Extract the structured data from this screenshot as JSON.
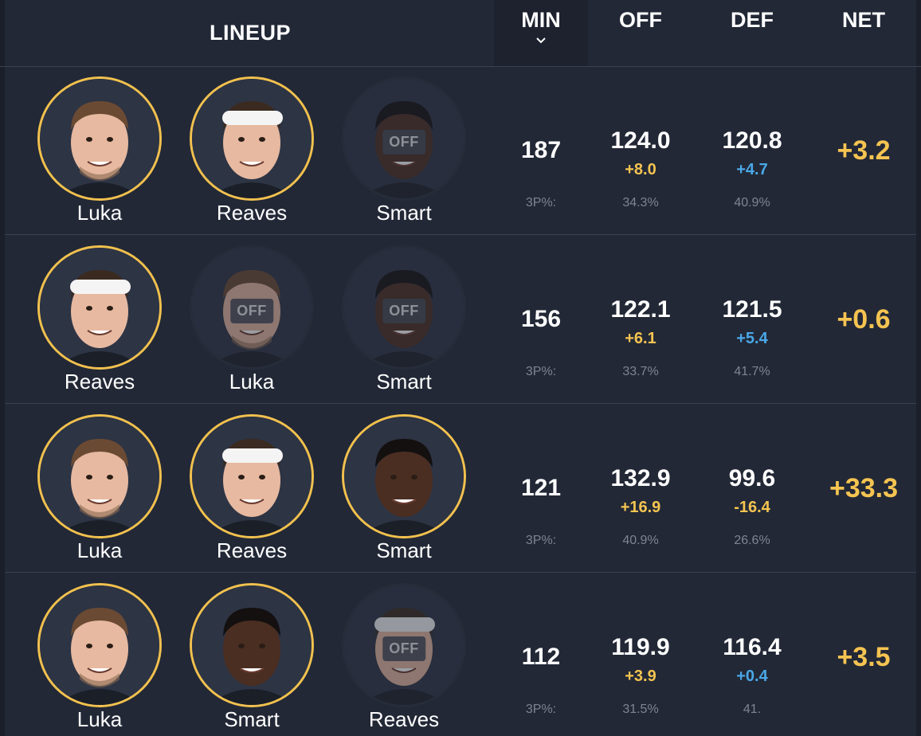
{
  "header": {
    "lineup": "LINEUP",
    "min": "MIN",
    "off": "OFF",
    "def": "DEF",
    "net": "NET",
    "sort_icon": "chevron-down-icon"
  },
  "off_badge": "OFF",
  "colors": {
    "accent_gold": "#f5c451",
    "ring_gold": "#f2c14e",
    "positive_blue": "#4aa8e8",
    "background": "#222836"
  },
  "rows": [
    {
      "players": [
        {
          "name": "Luka",
          "on": true
        },
        {
          "name": "Reaves",
          "on": true
        },
        {
          "name": "Smart",
          "on": false
        }
      ],
      "min": "187",
      "off": "124.0",
      "off_diff": "+8.0",
      "def": "120.8",
      "def_diff": "+4.7",
      "net": "+3.2",
      "tp_label": "3P%:",
      "off_3p": "34.3%",
      "def_3p": "40.9%"
    },
    {
      "players": [
        {
          "name": "Reaves",
          "on": true
        },
        {
          "name": "Luka",
          "on": false
        },
        {
          "name": "Smart",
          "on": false
        }
      ],
      "min": "156",
      "off": "122.1",
      "off_diff": "+6.1",
      "def": "121.5",
      "def_diff": "+5.4",
      "net": "+0.6",
      "tp_label": "3P%:",
      "off_3p": "33.7%",
      "def_3p": "41.7%"
    },
    {
      "players": [
        {
          "name": "Luka",
          "on": true
        },
        {
          "name": "Reaves",
          "on": true
        },
        {
          "name": "Smart",
          "on": true
        }
      ],
      "min": "121",
      "off": "132.9",
      "off_diff": "+16.9",
      "def": "99.6",
      "def_diff": "-16.4",
      "net": "+33.3",
      "tp_label": "3P%:",
      "off_3p": "40.9%",
      "def_3p": "26.6%"
    },
    {
      "players": [
        {
          "name": "Luka",
          "on": true
        },
        {
          "name": "Smart",
          "on": true
        },
        {
          "name": "Reaves",
          "on": false
        }
      ],
      "min": "112",
      "off": "119.9",
      "off_diff": "+3.9",
      "def": "116.4",
      "def_diff": "+0.4",
      "net": "+3.5",
      "tp_label": "3P%:",
      "off_3p": "31.5%",
      "def_3p": "41."
    }
  ]
}
